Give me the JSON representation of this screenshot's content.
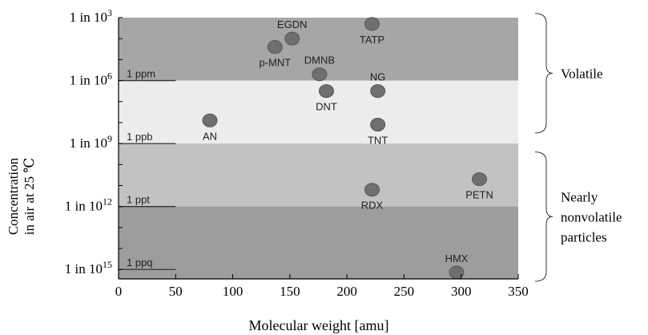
{
  "chart_data": {
    "type": "scatter",
    "xlabel": "Molecular weight [amu]",
    "ylabel_line1": "Concentration",
    "ylabel_line2": "in  air at 25 ℃",
    "xlim": [
      0,
      350
    ],
    "x_ticks": [
      "0",
      "50",
      "100",
      "150",
      "200",
      "250",
      "300",
      "350"
    ],
    "y_scale": "log",
    "y_ticks": [
      {
        "prefix": "1 in 10",
        "exp": "3"
      },
      {
        "prefix": "1 in 10",
        "exp": "6"
      },
      {
        "prefix": "1 in 10",
        "exp": "9"
      },
      {
        "prefix": "1 in 10",
        "exp": "12"
      },
      {
        "prefix": "1 in 10",
        "exp": "15"
      }
    ],
    "bands": [
      {
        "from": 3,
        "to": 6,
        "color": "#a6a6a6"
      },
      {
        "from": 6,
        "to": 9,
        "color": "#ececec"
      },
      {
        "from": 9,
        "to": 12,
        "color": "#c2c2c2"
      },
      {
        "from": 12,
        "to": 15.5,
        "color": "#9d9d9d"
      }
    ],
    "level_labels": [
      {
        "text": "1 ppm",
        "exp": 6
      },
      {
        "text": "1 ppb",
        "exp": 9
      },
      {
        "text": "1 ppt",
        "exp": 12
      },
      {
        "text": "1 ppq",
        "exp": 15
      }
    ],
    "points": [
      {
        "label": "TATP",
        "x": 222,
        "exp": 3.3,
        "label_pos": "below"
      },
      {
        "label": "EGDN",
        "x": 152,
        "exp": 4.0,
        "label_pos": "above"
      },
      {
        "label": "p-MNT",
        "x": 137,
        "exp": 4.4,
        "label_pos": "below"
      },
      {
        "label": "DMNB",
        "x": 176,
        "exp": 5.7,
        "label_pos": "above"
      },
      {
        "label": "DNT",
        "x": 182,
        "exp": 6.5,
        "label_pos": "below"
      },
      {
        "label": "NG",
        "x": 227,
        "exp": 6.5,
        "label_pos": "above"
      },
      {
        "label": "AN",
        "x": 80,
        "exp": 7.9,
        "label_pos": "below"
      },
      {
        "label": "TNT",
        "x": 227,
        "exp": 8.1,
        "label_pos": "below"
      },
      {
        "label": "PETN",
        "x": 316,
        "exp": 10.7,
        "label_pos": "below"
      },
      {
        "label": "RDX",
        "x": 222,
        "exp": 11.2,
        "label_pos": "below"
      },
      {
        "label": "HMX",
        "x": 296,
        "exp": 15.7,
        "label_pos": "above"
      }
    ],
    "point_color": "#6f6f6f",
    "brackets": [
      {
        "label_lines": [
          "Volatile"
        ],
        "from": 2.8,
        "to": 8.5
      },
      {
        "label_lines": [
          "Nearly",
          "nonvolatile",
          "particles"
        ],
        "from": 9.4,
        "to": 16.1
      }
    ]
  }
}
